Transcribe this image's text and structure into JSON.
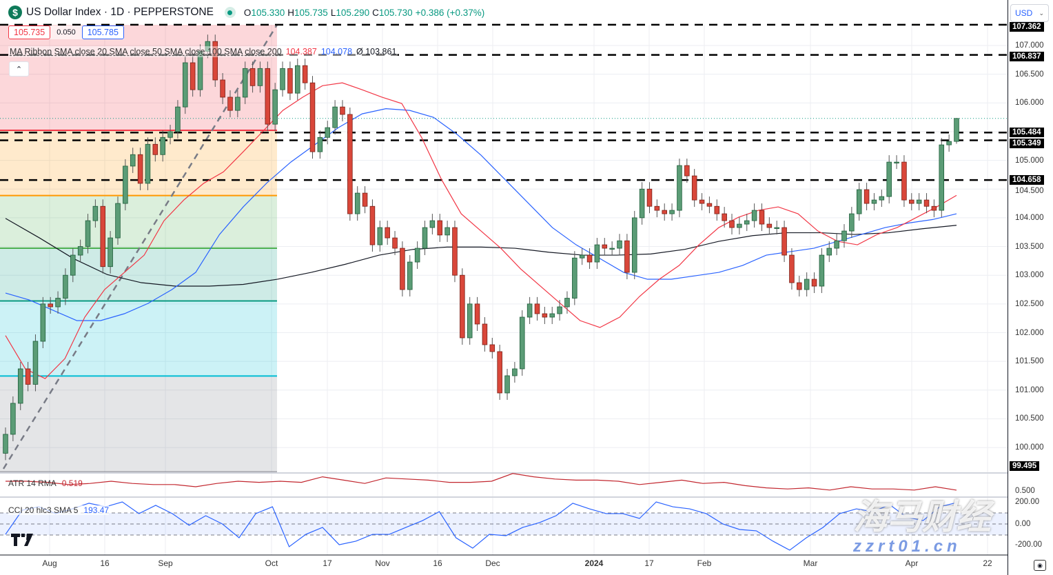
{
  "header": {
    "symbol_icon": "dollar-circle-icon",
    "title": "US Dollar Index · 1D · PEPPERSTONE",
    "ohlc": {
      "o_label": "O",
      "o": "105.330",
      "h_label": "H",
      "h": "105.735",
      "l_label": "L",
      "l": "105.290",
      "c_label": "C",
      "c": "105.730",
      "change": "+0.386 (+0.37%)"
    },
    "currency": "USD"
  },
  "quote": {
    "bid": "105.735",
    "spread": "0.050",
    "ask": "105.785"
  },
  "ma_legend": {
    "label": "MA Ribbon SMA close 20 SMA close 50 SMA close 100 SMA close 200",
    "v20": "104.387",
    "v50": "104.078",
    "v200": "Ø 103.861"
  },
  "atr_legend": {
    "label": "ATR 14 RMA",
    "value": "0.519"
  },
  "cci_legend": {
    "label": "CCI 20 hlc3 SMA 5",
    "value": "193.47"
  },
  "price_axis": {
    "ticks": [
      "107.000",
      "106.500",
      "106.000",
      "105.000",
      "104.500",
      "104.000",
      "103.500",
      "103.000",
      "102.500",
      "102.000",
      "101.500",
      "101.000",
      "100.500",
      "100.000"
    ],
    "highlights": [
      "107.362",
      "106.837",
      "105.484",
      "105.349",
      "104.658",
      "99.495"
    ],
    "atr_tick": "0.500",
    "cci_ticks": [
      "200.00",
      "0.00",
      "-200.00"
    ]
  },
  "time_axis": [
    "Aug",
    "16",
    "Sep",
    "Oct",
    "17",
    "Nov",
    "16",
    "Dec",
    "2024",
    "17",
    "Feb",
    "Mar",
    "Apr",
    "22"
  ],
  "watermark": {
    "cn": "海马财经",
    "url": "zzrt01.cn"
  },
  "colors": {
    "up": "#5b9c76",
    "down": "#d9473a",
    "sma20": "#f23645",
    "sma50": "#2962ff",
    "sma200": "#131722",
    "atr": "#c2262e",
    "cci": "#2962ff",
    "accent": "#089981"
  },
  "chart_data": {
    "type": "candlestick",
    "first_open": 99.9,
    "last_high": 105.735,
    "last_low": 105.29,
    "close": [
      100.23,
      100.77,
      101.37,
      101.1,
      101.85,
      102.5,
      102.45,
      102.6,
      103.0,
      103.35,
      103.5,
      103.95,
      104.2,
      103.15,
      103.65,
      104.25,
      104.9,
      105.1,
      104.6,
      105.28,
      105.1,
      105.4,
      105.5,
      105.93,
      106.7,
      106.23,
      106.9,
      107.07,
      106.4,
      106.1,
      105.87,
      106.1,
      106.6,
      106.3,
      106.6,
      105.63,
      106.23,
      106.6,
      106.17,
      106.65,
      106.35,
      105.15,
      105.4,
      105.57,
      105.93,
      105.8,
      104.07,
      104.43,
      104.2,
      103.53,
      103.83,
      103.65,
      103.47,
      102.75,
      103.23,
      103.47,
      103.83,
      103.95,
      103.7,
      103.83,
      103.0,
      101.91,
      102.5,
      102.15,
      101.79,
      101.67,
      100.95,
      101.25,
      101.37,
      102.27,
      102.5,
      102.33,
      102.27,
      102.33,
      102.45,
      102.6,
      103.3,
      103.35,
      103.23,
      103.53,
      103.47,
      103.47,
      103.6,
      103.05,
      104.0,
      104.5,
      104.2,
      104.13,
      104.07,
      104.13,
      104.91,
      104.73,
      104.31,
      104.25,
      104.2,
      104.07,
      103.95,
      103.83,
      103.89,
      103.95,
      104.13,
      103.89,
      103.83,
      103.83,
      103.35,
      102.87,
      102.75,
      102.93,
      102.81,
      103.35,
      103.47,
      103.6,
      103.77,
      104.07,
      104.49,
      104.25,
      104.31,
      104.37,
      104.97,
      104.97,
      104.31,
      104.25,
      104.31,
      104.2,
      104.13,
      105.27,
      105.33,
      105.73
    ],
    "sma20": [
      101.95,
      101.37,
      101.2,
      101.55,
      102.27,
      102.75,
      103.05,
      103.35,
      103.95,
      104.31,
      104.6,
      104.8,
      105.15,
      105.51,
      105.87,
      106.1,
      106.3,
      106.35,
      106.23,
      106.1,
      105.99,
      105.4,
      104.67,
      104.07,
      103.77,
      103.47,
      103.11,
      102.81,
      102.51,
      102.21,
      102.09,
      102.27,
      102.63,
      102.93,
      103.17,
      103.53,
      103.83,
      104.01,
      104.13,
      104.19,
      104.07,
      103.77,
      103.59,
      103.53,
      103.71,
      103.83,
      104.01,
      104.19,
      104.39
    ],
    "sma50": [
      102.69,
      102.57,
      102.39,
      102.21,
      102.21,
      102.33,
      102.51,
      102.75,
      103.05,
      103.71,
      104.19,
      104.61,
      104.97,
      105.27,
      105.57,
      105.81,
      105.9,
      105.87,
      105.75,
      105.45,
      105.09,
      104.67,
      104.25,
      103.83,
      103.53,
      103.29,
      103.05,
      102.93,
      102.93,
      102.99,
      103.05,
      103.17,
      103.35,
      103.41,
      103.47,
      103.59,
      103.71,
      103.83,
      103.91,
      103.97,
      104.07
    ],
    "sma200": [
      103.99,
      103.65,
      103.29,
      103.01,
      102.87,
      102.81,
      102.81,
      102.84,
      102.93,
      103.05,
      103.19,
      103.35,
      103.45,
      103.49,
      103.49,
      103.47,
      103.4,
      103.35,
      103.35,
      103.37,
      103.45,
      103.59,
      103.69,
      103.74,
      103.74,
      103.71,
      103.74,
      103.81,
      103.87
    ],
    "horizontal_levels": [
      107.362,
      106.837,
      105.484,
      105.349,
      104.658
    ],
    "current_price": 105.73,
    "fib": {
      "low": 99.58,
      "high": 107.36,
      "levels": [
        0,
        0.236,
        0.382,
        0.5,
        0.618,
        0.786,
        1
      ],
      "colors": [
        "#f23645",
        "#ff9800",
        "#4caf50",
        "#089981",
        "#00bcd4",
        "#787b86"
      ]
    },
    "y_range": [
      99.5,
      107.4
    ],
    "atr": [
      0.6,
      0.6,
      0.59,
      0.57,
      0.58,
      0.6,
      0.58,
      0.57,
      0.57,
      0.55,
      0.58,
      0.6,
      0.59,
      0.6,
      0.59,
      0.64,
      0.61,
      0.58,
      0.63,
      0.62,
      0.61,
      0.59,
      0.59,
      0.6,
      0.67,
      0.64,
      0.62,
      0.61,
      0.61,
      0.6,
      0.57,
      0.59,
      0.61,
      0.58,
      0.59,
      0.56,
      0.54,
      0.53,
      0.54,
      0.52,
      0.55,
      0.53,
      0.53,
      0.52,
      0.55,
      0.519
    ],
    "cci": [
      -94,
      125,
      156,
      94,
      137,
      188,
      156,
      200,
      94,
      169,
      94,
      -12,
      75,
      0,
      -125,
      94,
      156,
      -206,
      -94,
      -31,
      -188,
      -156,
      -94,
      -94,
      -31,
      31,
      112,
      -125,
      -219,
      -94,
      -106,
      -31,
      12,
      75,
      188,
      137,
      94,
      94,
      50,
      200,
      156,
      137,
      94,
      0,
      -50,
      -62,
      -156,
      -237,
      -125,
      -31,
      94,
      137,
      112,
      175,
      62,
      31,
      156,
      193.47
    ]
  }
}
